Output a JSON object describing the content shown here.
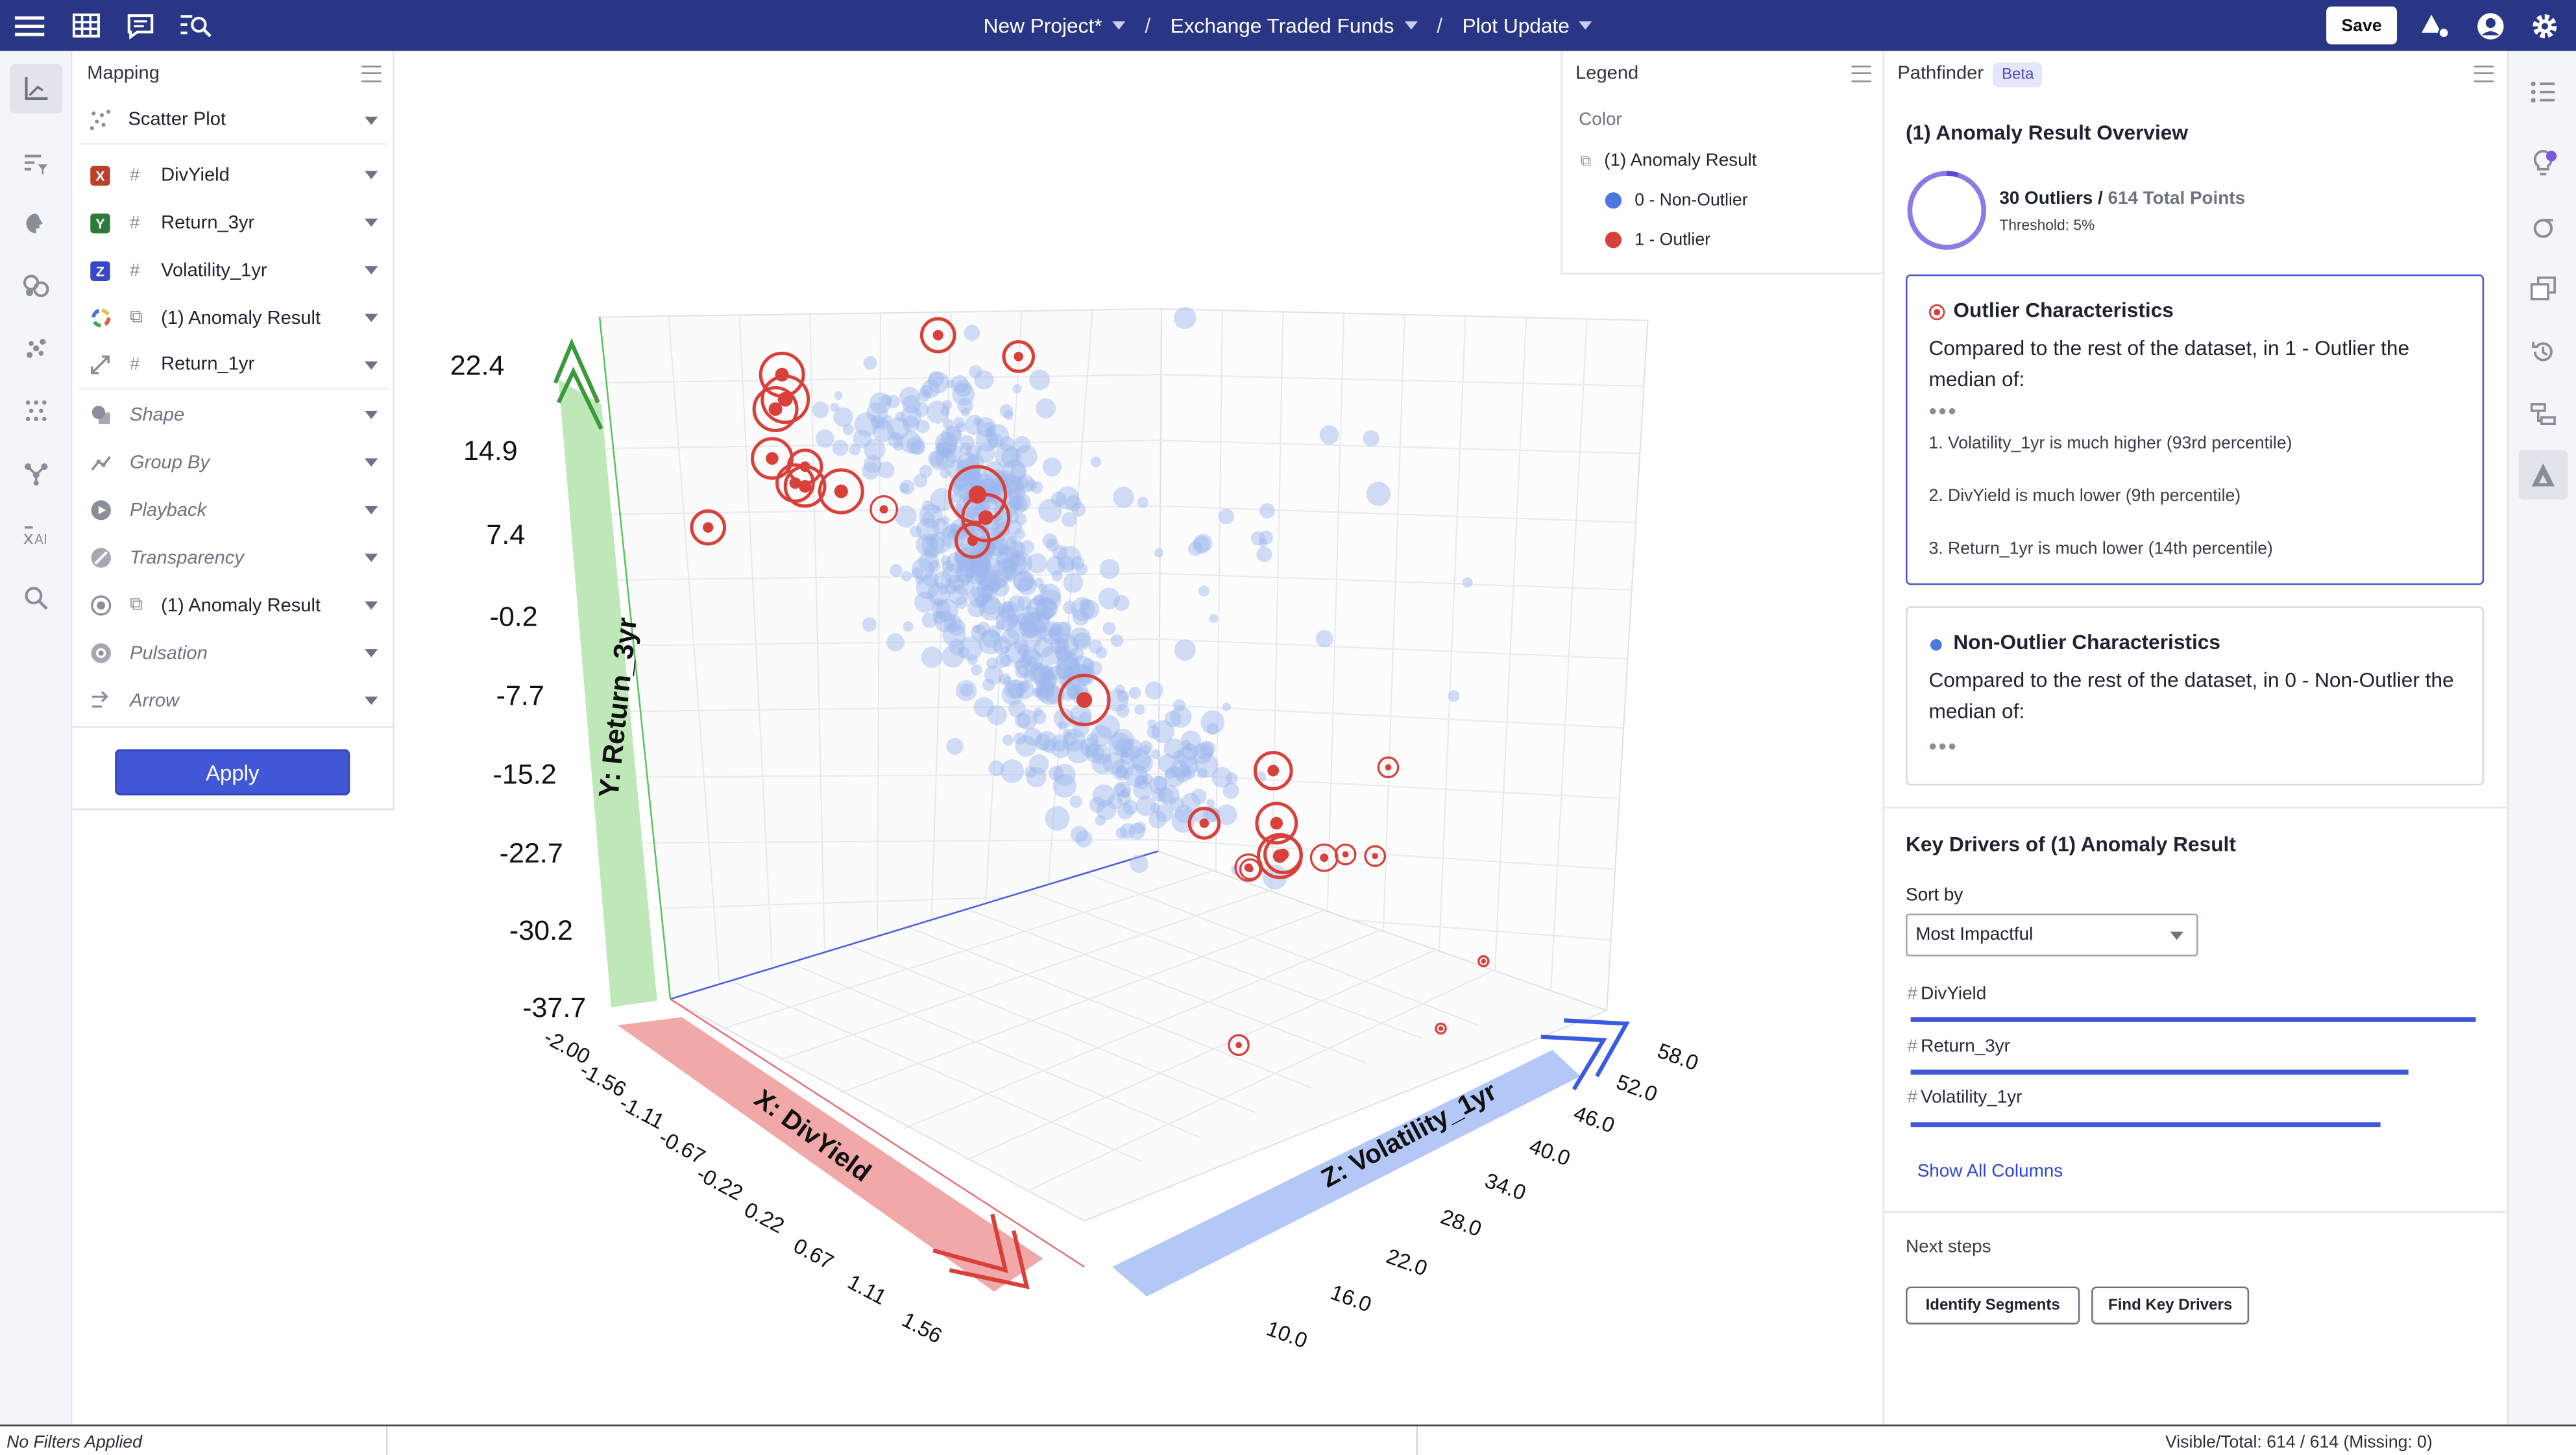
{
  "topbar": {
    "breadcrumbs": [
      {
        "label": "New Project*"
      },
      {
        "label": "Exchange Traded Funds"
      },
      {
        "label": "Plot Update"
      }
    ],
    "separator": "/",
    "save_label": "Save"
  },
  "mapping": {
    "title": "Mapping",
    "plot_type": "Scatter Plot",
    "axes": [
      {
        "badge": "X",
        "badge_color": "#b8412e",
        "label": "DivYield"
      },
      {
        "badge": "Y",
        "badge_color": "#2f7a3a",
        "label": "Return_3yr"
      },
      {
        "badge": "Z",
        "badge_color": "#3548c9",
        "label": "Volatility_1yr"
      }
    ],
    "color_label": "(1) Anomaly Result",
    "size_label": "Return_1yr",
    "options": {
      "shape": "Shape",
      "group_by": "Group By",
      "playback": "Playback",
      "transparency": "Transparency",
      "halo": "(1) Anomaly Result",
      "pulsation": "Pulsation",
      "arrow": "Arrow"
    },
    "apply_label": "Apply"
  },
  "legend": {
    "title": "Legend",
    "section": "Color",
    "group": "(1) Anomaly Result",
    "items": [
      {
        "label": "0 - Non-Outlier",
        "color": "#4a78e0"
      },
      {
        "label": "1 - Outlier",
        "color": "#d8413a"
      }
    ]
  },
  "plot": {
    "y_axis_label": "Y: Return_3yr",
    "x_axis_label": "X: DivYield",
    "z_axis_label": "Z: Volatility_1yr",
    "y_ticks": [
      "22.4",
      "14.9",
      "7.4",
      "-0.2",
      "-7.7",
      "-15.2",
      "-22.7",
      "-30.2",
      "-37.7"
    ],
    "x_ticks": [
      "-2.00",
      "-1.56",
      "-1.11",
      "-0.67",
      "-0.22",
      "0.22",
      "0.67",
      "1.11",
      "1.56"
    ],
    "z_ticks": [
      "58.0",
      "52.0",
      "46.0",
      "40.0",
      "34.0",
      "28.0",
      "22.0",
      "16.0",
      "10.0"
    ],
    "colors": {
      "y": "#bfe8b8",
      "x": "#f0a8a8",
      "z": "#b3c8f7",
      "non_outlier": "#9bb6ee",
      "outlier": "#d8413a"
    }
  },
  "pathfinder": {
    "title": "Pathfinder",
    "beta": "Beta",
    "overview_title": "(1) Anomaly Result Overview",
    "outliers": "30 Outliers /",
    "total": "614 Total Points",
    "threshold": "Threshold: 5%",
    "outlier_card": {
      "title": "Outlier Characteristics",
      "intro": "Compared to the rest of the dataset, in 1 - Outlier the median of:",
      "items": [
        "1. Volatility_1yr is much higher (93rd percentile)",
        "2. DivYield is much lower (9th percentile)",
        "3. Return_1yr is much lower (14th percentile)"
      ]
    },
    "non_outlier_card": {
      "title": "Non-Outlier Characteristics",
      "intro": "Compared to the rest of the dataset, in 0 - Non-Outlier the median of:"
    },
    "key_drivers_title": "Key Drivers of (1) Anomaly Result",
    "sort_by_label": "Sort by",
    "sort_value": "Most Impactful",
    "drivers": [
      {
        "label": "DivYield"
      },
      {
        "label": "Return_3yr"
      },
      {
        "label": "Volatility_1yr"
      }
    ],
    "show_all": "Show All Columns",
    "next_steps_label": "Next steps",
    "buttons": [
      "Identify Segments",
      "Find Key Drivers"
    ]
  },
  "status": {
    "filters": "No Filters Applied",
    "visible": "Visible/Total: 614 / 614 (Missing: 0)"
  }
}
